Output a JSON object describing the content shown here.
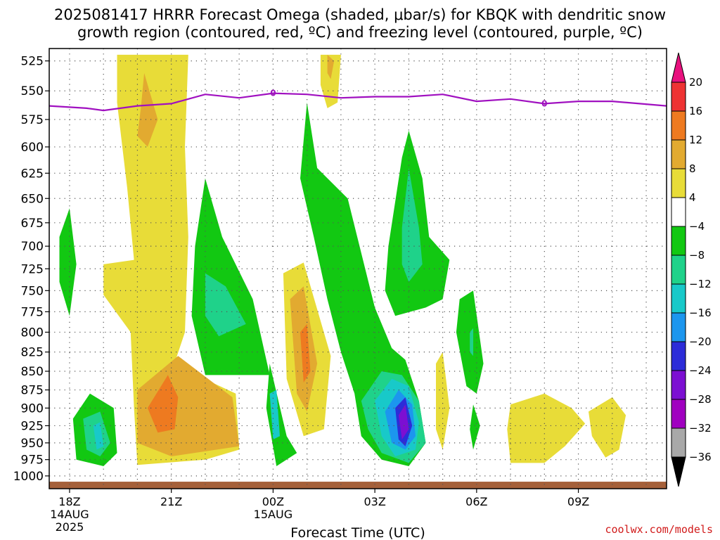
{
  "title_line1": "2025081417 HRRR Forecast Omega (shaded, μbar/s) for KBQK with dendritic snow",
  "title_line2": "growth region (contoured, red, ºC) and freezing level (contoured, purple, ºC)",
  "credit": "coolwx.com/models",
  "chart_data": {
    "type": "heatmap",
    "title": "2025081417 HRRR Forecast Omega (shaded, μbar/s) for KBQK with dendritic snow growth region (contoured, red, ºC) and freezing level (contoured, purple, ºC)",
    "xlabel": "Forecast Time (UTC)",
    "ylabel": "",
    "x_ticks": [
      {
        "hour": 0,
        "label": "18Z",
        "sub1": "14AUG",
        "sub2": "2025"
      },
      {
        "hour": 3,
        "label": "21Z",
        "sub1": "",
        "sub2": ""
      },
      {
        "hour": 6,
        "label": "00Z",
        "sub1": "15AUG",
        "sub2": ""
      },
      {
        "hour": 9,
        "label": "03Z",
        "sub1": "",
        "sub2": ""
      },
      {
        "hour": 12,
        "label": "06Z",
        "sub1": "",
        "sub2": ""
      },
      {
        "hour": 15,
        "label": "09Z",
        "sub1": "",
        "sub2": ""
      }
    ],
    "xlim": [
      -0.6,
      17.6
    ],
    "y_ticks": [
      525,
      550,
      575,
      600,
      625,
      650,
      675,
      700,
      725,
      750,
      775,
      800,
      825,
      850,
      875,
      900,
      925,
      950,
      975,
      1000
    ],
    "ylim": [
      1020,
      515
    ],
    "y_scale": "log",
    "grid": true,
    "colorbar": {
      "labels": [
        "20",
        "16",
        "12",
        "8",
        "4",
        "−4",
        "−8",
        "−12",
        "−16",
        "−20",
        "−24",
        "−28",
        "−32",
        "−36"
      ],
      "colors": [
        "#e8117e",
        "#ee3333",
        "#ee7a20",
        "#e2aa30",
        "#e8dc38",
        "#ffffff",
        "#12c812",
        "#1fd28a",
        "#18c9c9",
        "#1c96ee",
        "#2c2cd8",
        "#7c0fd2",
        "#a000c0",
        "#a8a8a8",
        "#000000"
      ]
    },
    "freezing_level": {
      "label": "0",
      "color": "#a010c0",
      "points": [
        [
          -0.6,
          563
        ],
        [
          0.5,
          565
        ],
        [
          1.0,
          567
        ],
        [
          2.0,
          563
        ],
        [
          3.0,
          561
        ],
        [
          4.0,
          553
        ],
        [
          5.0,
          556
        ],
        [
          6.0,
          552
        ],
        [
          7.0,
          553
        ],
        [
          8.0,
          556
        ],
        [
          9.0,
          555
        ],
        [
          10.0,
          555
        ],
        [
          11.0,
          553
        ],
        [
          12.0,
          559
        ],
        [
          13.0,
          557
        ],
        [
          14.0,
          561
        ],
        [
          15.0,
          559
        ],
        [
          16.0,
          559
        ],
        [
          17.6,
          563
        ]
      ]
    },
    "regions": [
      {
        "name": "pos-upper-tower",
        "fill": "#e8dc38",
        "points": [
          [
            1.4,
            520
          ],
          [
            3.5,
            520
          ],
          [
            3.4,
            600
          ],
          [
            3.5,
            690
          ],
          [
            3.4,
            800
          ],
          [
            3.0,
            852
          ],
          [
            4.2,
            865
          ],
          [
            4.9,
            880
          ],
          [
            5.0,
            960
          ],
          [
            4.0,
            975
          ],
          [
            2.0,
            983
          ],
          [
            1.9,
            900
          ],
          [
            1.8,
            800
          ],
          [
            1.0,
            755
          ],
          [
            1.0,
            720
          ],
          [
            1.9,
            715
          ],
          [
            1.7,
            640
          ],
          [
            1.4,
            560
          ]
        ]
      },
      {
        "name": "pos-lower-orange",
        "fill": "#e2aa30",
        "points": [
          [
            2.0,
            875
          ],
          [
            3.2,
            830
          ],
          [
            4.8,
            885
          ],
          [
            5.0,
            955
          ],
          [
            3.0,
            970
          ],
          [
            2.0,
            950
          ]
        ]
      },
      {
        "name": "pos-lower-core",
        "fill": "#ee7a20",
        "points": [
          [
            2.3,
            900
          ],
          [
            2.9,
            855
          ],
          [
            3.2,
            885
          ],
          [
            3.1,
            930
          ],
          [
            2.6,
            935
          ]
        ]
      },
      {
        "name": "pos-upper-core",
        "fill": "#e2aa30",
        "points": [
          [
            2.1,
            565
          ],
          [
            2.2,
            535
          ],
          [
            2.6,
            575
          ],
          [
            2.3,
            600
          ],
          [
            2.0,
            590
          ]
        ]
      },
      {
        "name": "pos-top-right",
        "fill": "#e8dc38",
        "points": [
          [
            7.4,
            520
          ],
          [
            8.0,
            520
          ],
          [
            7.9,
            560
          ],
          [
            7.6,
            565
          ],
          [
            7.4,
            545
          ]
        ]
      },
      {
        "name": "pos-top-right-core",
        "fill": "#e2aa30",
        "points": [
          [
            7.6,
            520
          ],
          [
            7.8,
            525
          ],
          [
            7.7,
            540
          ],
          [
            7.6,
            535
          ]
        ]
      },
      {
        "name": "pos-mid",
        "fill": "#e8dc38",
        "points": [
          [
            6.3,
            730
          ],
          [
            6.9,
            718
          ],
          [
            7.7,
            830
          ],
          [
            7.5,
            930
          ],
          [
            6.9,
            940
          ],
          [
            6.4,
            860
          ]
        ]
      },
      {
        "name": "pos-mid-orange",
        "fill": "#e2aa30",
        "points": [
          [
            6.5,
            760
          ],
          [
            6.9,
            745
          ],
          [
            7.3,
            840
          ],
          [
            7.0,
            905
          ],
          [
            6.7,
            880
          ]
        ]
      },
      {
        "name": "pos-mid-core",
        "fill": "#ee7a20",
        "points": [
          [
            6.8,
            800
          ],
          [
            7.0,
            790
          ],
          [
            7.1,
            850
          ],
          [
            6.9,
            865
          ]
        ]
      },
      {
        "name": "pos-thin",
        "fill": "#e8dc38",
        "points": [
          [
            10.8,
            840
          ],
          [
            11.0,
            825
          ],
          [
            11.2,
            900
          ],
          [
            11.0,
            960
          ],
          [
            10.8,
            930
          ]
        ]
      },
      {
        "name": "pos-bottom-right-1",
        "fill": "#e8dc38",
        "points": [
          [
            13.0,
            895
          ],
          [
            14.0,
            880
          ],
          [
            14.8,
            900
          ],
          [
            15.2,
            922
          ],
          [
            14.6,
            955
          ],
          [
            14.0,
            980
          ],
          [
            13.0,
            980
          ],
          [
            12.9,
            930
          ]
        ]
      },
      {
        "name": "pos-bottom-right-2",
        "fill": "#e8dc38",
        "points": [
          [
            15.3,
            905
          ],
          [
            16.0,
            885
          ],
          [
            16.4,
            910
          ],
          [
            16.2,
            960
          ],
          [
            15.8,
            972
          ],
          [
            15.4,
            940
          ]
        ]
      },
      {
        "name": "neg-left-upper",
        "fill": "#12c812",
        "points": [
          [
            -0.3,
            690
          ],
          [
            0.0,
            660
          ],
          [
            0.2,
            720
          ],
          [
            0.0,
            780
          ],
          [
            -0.3,
            740
          ]
        ]
      },
      {
        "name": "neg-left-lower",
        "fill": "#12c812",
        "points": [
          [
            0.1,
            915
          ],
          [
            0.6,
            880
          ],
          [
            1.3,
            900
          ],
          [
            1.4,
            965
          ],
          [
            1.0,
            985
          ],
          [
            0.2,
            975
          ]
        ]
      },
      {
        "name": "neg-left-lower-teal",
        "fill": "#1fd28a",
        "points": [
          [
            0.4,
            915
          ],
          [
            0.9,
            905
          ],
          [
            1.2,
            950
          ],
          [
            0.9,
            970
          ],
          [
            0.5,
            960
          ]
        ]
      },
      {
        "name": "neg-left-lower-cyan",
        "fill": "#18c9c9",
        "points": [
          [
            0.7,
            925
          ],
          [
            0.9,
            920
          ],
          [
            1.0,
            955
          ],
          [
            0.8,
            960
          ]
        ]
      },
      {
        "name": "neg-diag-1",
        "fill": "#12c812",
        "points": [
          [
            3.7,
            700
          ],
          [
            4.0,
            630
          ],
          [
            4.5,
            690
          ],
          [
            5.4,
            760
          ],
          [
            5.9,
            855
          ],
          [
            4.0,
            855
          ],
          [
            3.6,
            780
          ]
        ]
      },
      {
        "name": "neg-diag-1-teal",
        "fill": "#1fd28a",
        "points": [
          [
            4.0,
            730
          ],
          [
            4.6,
            745
          ],
          [
            5.2,
            790
          ],
          [
            4.4,
            805
          ],
          [
            4.0,
            780
          ]
        ]
      },
      {
        "name": "neg-bottom-mid",
        "fill": "#12c812",
        "points": [
          [
            5.9,
            840
          ],
          [
            6.4,
            940
          ],
          [
            6.7,
            965
          ],
          [
            6.1,
            985
          ],
          [
            5.8,
            900
          ]
        ]
      },
      {
        "name": "neg-bottom-mid-cyan",
        "fill": "#18c9c9",
        "points": [
          [
            5.9,
            880
          ],
          [
            6.1,
            875
          ],
          [
            6.2,
            940
          ],
          [
            6.0,
            945
          ]
        ]
      },
      {
        "name": "neg-long-diag",
        "fill": "#12c812",
        "points": [
          [
            6.8,
            630
          ],
          [
            7.0,
            560
          ],
          [
            7.3,
            620
          ],
          [
            8.2,
            650
          ],
          [
            9.0,
            770
          ],
          [
            9.5,
            820
          ],
          [
            9.9,
            835
          ],
          [
            10.3,
            890
          ],
          [
            10.5,
            950
          ],
          [
            10.0,
            985
          ],
          [
            9.2,
            975
          ],
          [
            8.6,
            940
          ],
          [
            8.4,
            880
          ],
          [
            8.0,
            825
          ],
          [
            7.6,
            760
          ],
          [
            7.2,
            690
          ]
        ]
      },
      {
        "name": "neg-upper-right",
        "fill": "#12c812",
        "points": [
          [
            9.4,
            700
          ],
          [
            9.8,
            610
          ],
          [
            10.0,
            585
          ],
          [
            10.4,
            630
          ],
          [
            10.6,
            690
          ],
          [
            11.2,
            715
          ],
          [
            11.0,
            760
          ],
          [
            10.5,
            770
          ],
          [
            9.6,
            780
          ],
          [
            9.3,
            750
          ]
        ]
      },
      {
        "name": "neg-upper-right-teal",
        "fill": "#1fd28a",
        "points": [
          [
            9.8,
            680
          ],
          [
            10.0,
            620
          ],
          [
            10.3,
            680
          ],
          [
            10.4,
            720
          ],
          [
            10.0,
            740
          ],
          [
            9.8,
            720
          ]
        ]
      },
      {
        "name": "neg-lower-teal",
        "fill": "#1fd28a",
        "points": [
          [
            8.6,
            890
          ],
          [
            9.2,
            850
          ],
          [
            9.8,
            855
          ],
          [
            10.3,
            890
          ],
          [
            10.5,
            950
          ],
          [
            10.0,
            980
          ],
          [
            9.2,
            965
          ],
          [
            8.8,
            930
          ]
        ]
      },
      {
        "name": "neg-lower-cyan",
        "fill": "#18c9c9",
        "points": [
          [
            9.0,
            890
          ],
          [
            9.5,
            860
          ],
          [
            10.0,
            870
          ],
          [
            10.3,
            920
          ],
          [
            10.2,
            960
          ],
          [
            9.6,
            970
          ],
          [
            9.2,
            940
          ]
        ]
      },
      {
        "name": "neg-lower-blue",
        "fill": "#1c96ee",
        "points": [
          [
            9.3,
            905
          ],
          [
            9.7,
            875
          ],
          [
            10.1,
            895
          ],
          [
            10.2,
            940
          ],
          [
            9.9,
            960
          ],
          [
            9.5,
            950
          ]
        ]
      },
      {
        "name": "neg-lower-darkblue",
        "fill": "#2c2cd8",
        "points": [
          [
            9.6,
            900
          ],
          [
            9.9,
            885
          ],
          [
            10.1,
            925
          ],
          [
            9.9,
            955
          ],
          [
            9.7,
            945
          ]
        ]
      },
      {
        "name": "neg-lower-purple",
        "fill": "#7c0fd2",
        "points": [
          [
            9.7,
            910
          ],
          [
            9.9,
            895
          ],
          [
            10.0,
            930
          ],
          [
            9.8,
            945
          ]
        ]
      },
      {
        "name": "neg-right-small",
        "fill": "#12c812",
        "points": [
          [
            11.5,
            760
          ],
          [
            11.9,
            750
          ],
          [
            12.2,
            840
          ],
          [
            12.0,
            880
          ],
          [
            11.7,
            870
          ],
          [
            11.4,
            800
          ]
        ]
      },
      {
        "name": "neg-right-small-teal",
        "fill": "#1fd28a",
        "points": [
          [
            11.8,
            800
          ],
          [
            11.9,
            795
          ],
          [
            11.9,
            830
          ],
          [
            11.8,
            825
          ]
        ]
      },
      {
        "name": "neg-right-bottom",
        "fill": "#12c812",
        "points": [
          [
            11.8,
            930
          ],
          [
            11.9,
            895
          ],
          [
            12.1,
            925
          ],
          [
            11.9,
            960
          ]
        ]
      }
    ],
    "ground": {
      "color": "#a5603a",
      "top": 1009
    }
  }
}
